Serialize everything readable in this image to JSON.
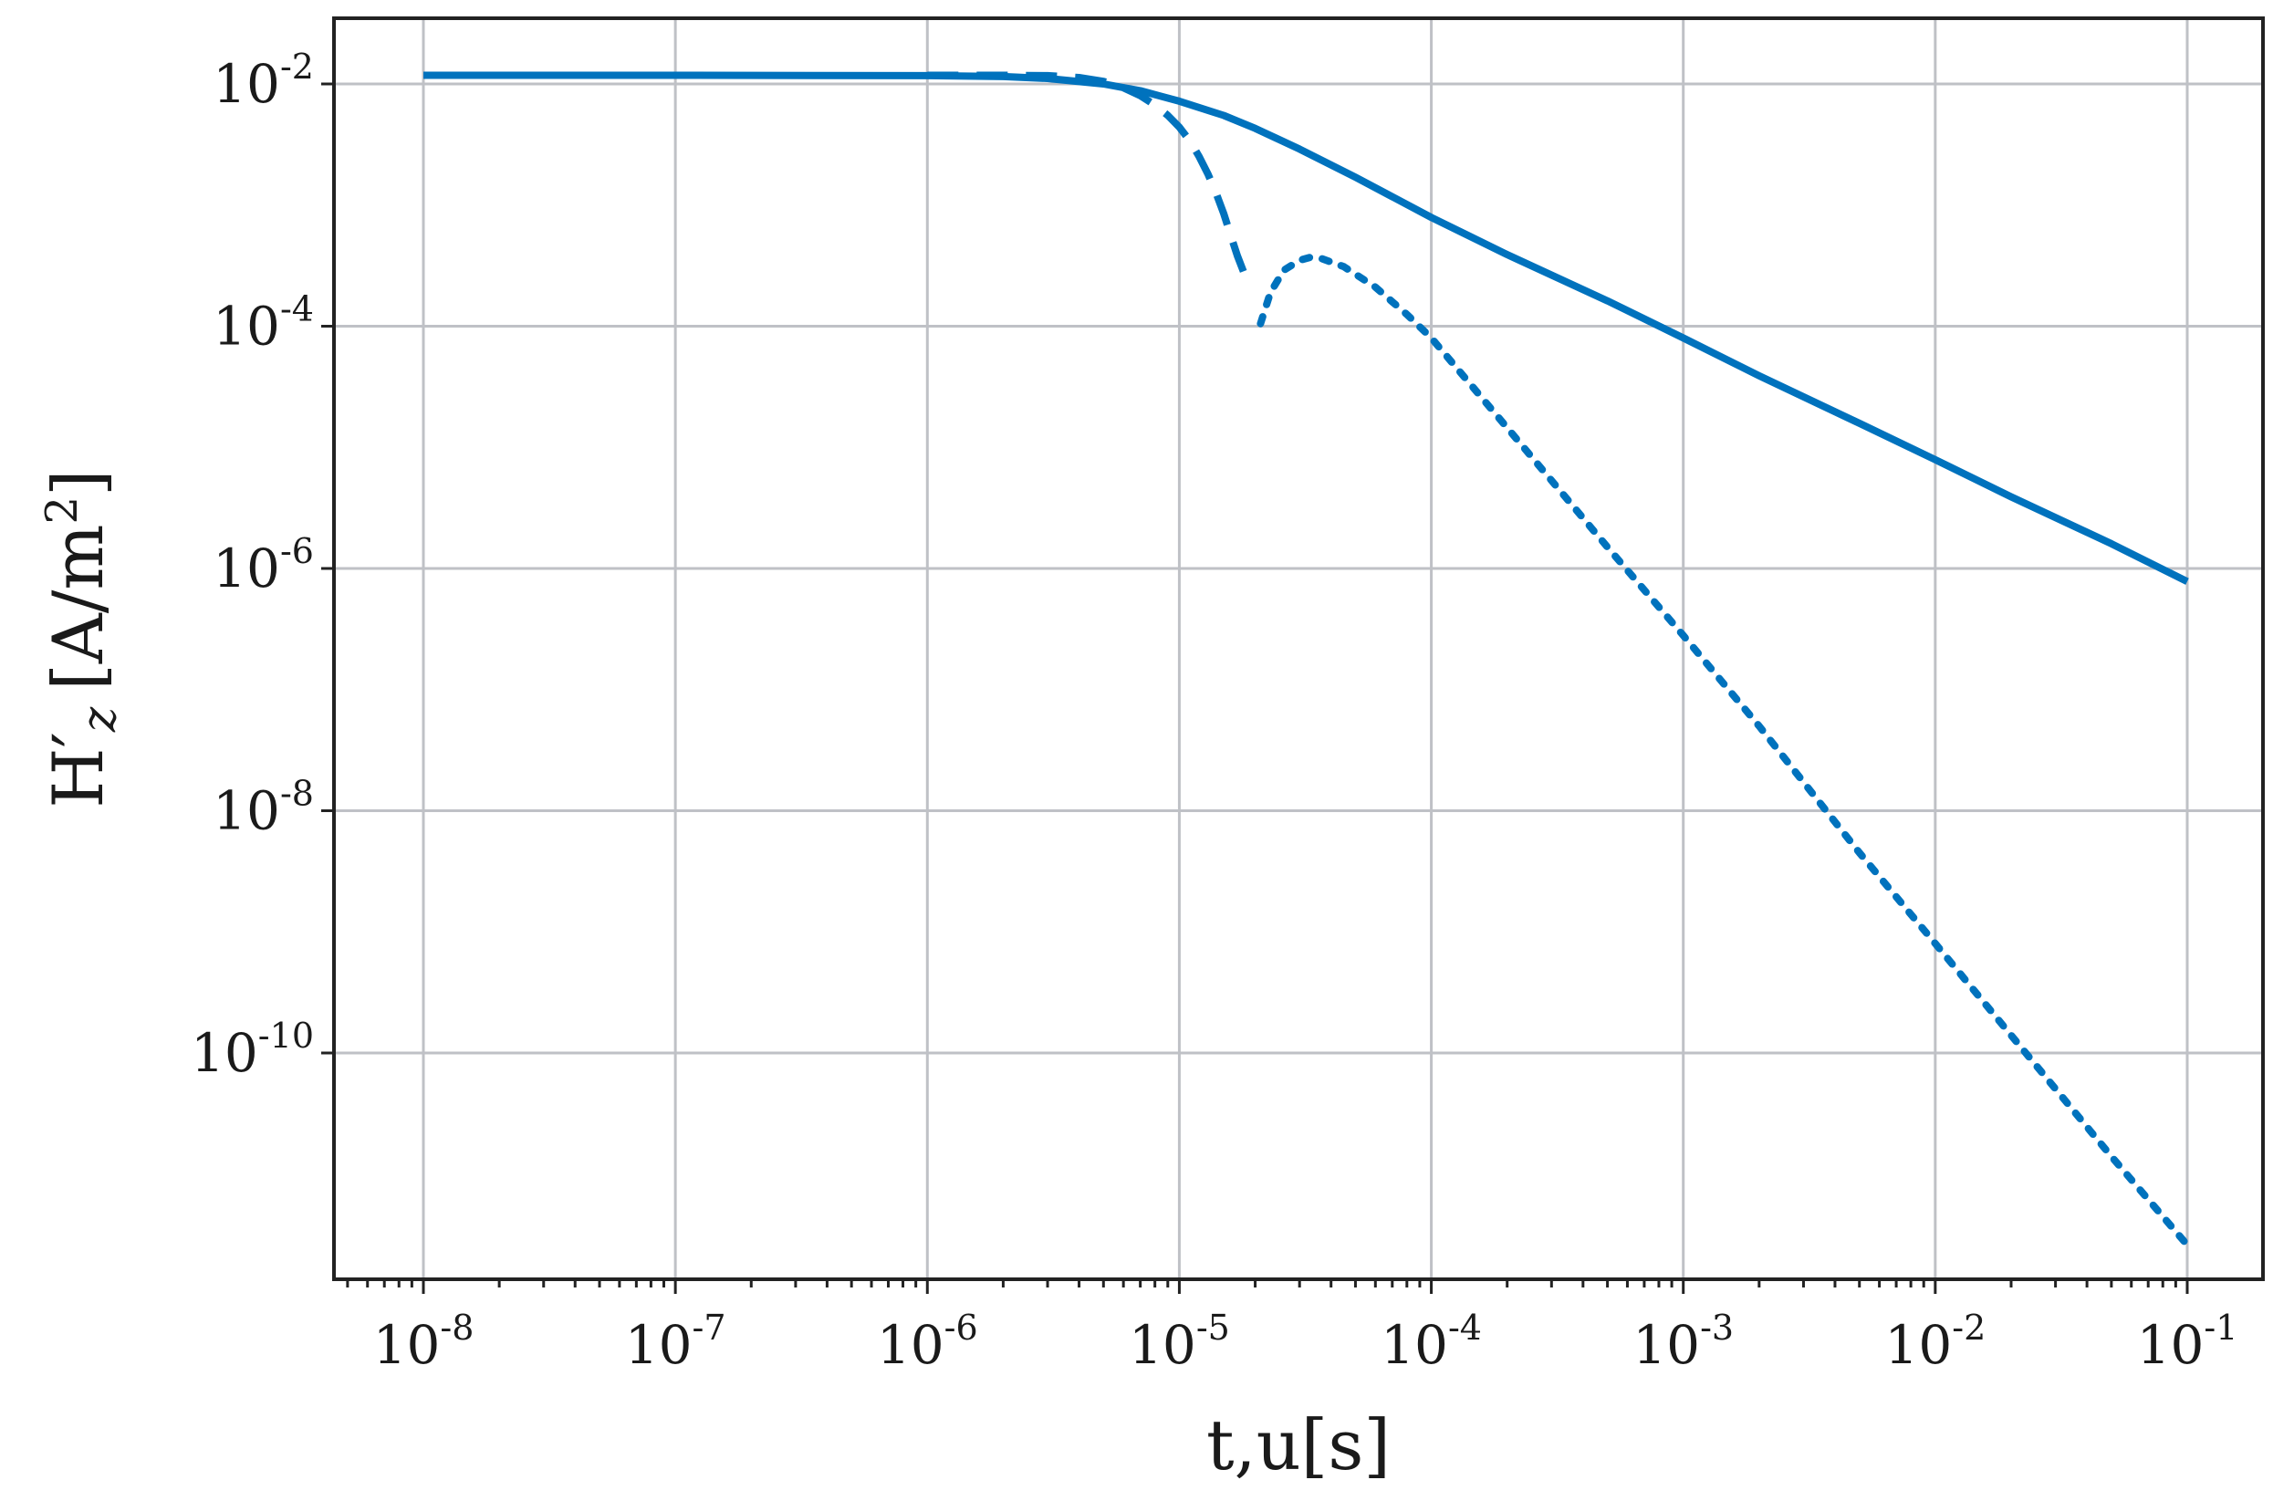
{
  "chart_data": {
    "type": "line",
    "title": "",
    "xscale": "log",
    "yscale": "log",
    "xlim": [
      5e-09,
      0.15
    ],
    "ylim": [
      1.6e-12,
      0.03
    ],
    "grid": true,
    "xlabel": "t,u[s]",
    "ylabel": {
      "main": "H′",
      "subscript": "z",
      "unit_open": "[A/m",
      "unit_power": "2",
      "unit_close": "]"
    },
    "x_ticks": [
      {
        "value": 1e-08,
        "base": "10",
        "exp": "-8"
      },
      {
        "value": 1e-07,
        "base": "10",
        "exp": "-7"
      },
      {
        "value": 1e-06,
        "base": "10",
        "exp": "-6"
      },
      {
        "value": 1e-05,
        "base": "10",
        "exp": "-5"
      },
      {
        "value": 0.0001,
        "base": "10",
        "exp": "-4"
      },
      {
        "value": 0.001,
        "base": "10",
        "exp": "-3"
      },
      {
        "value": 0.01,
        "base": "10",
        "exp": "-2"
      },
      {
        "value": 0.1,
        "base": "10",
        "exp": "-1"
      }
    ],
    "y_ticks": [
      {
        "value": 0.01,
        "base": "10",
        "exp": "-2"
      },
      {
        "value": 0.0001,
        "base": "10",
        "exp": "-4"
      },
      {
        "value": 1e-06,
        "base": "10",
        "exp": "-6"
      },
      {
        "value": 1e-08,
        "base": "10",
        "exp": "-8"
      },
      {
        "value": 1e-10,
        "base": "10",
        "exp": "-10"
      }
    ],
    "series": [
      {
        "style": "solid",
        "color": "#0072bd",
        "x": [
          1e-08,
          1e-07,
          1e-06,
          2e-06,
          3e-06,
          5e-06,
          7e-06,
          1e-05,
          1.5e-05,
          2e-05,
          3e-05,
          5e-05,
          0.0001,
          0.0002,
          0.0005,
          0.001,
          0.002,
          0.005,
          0.01,
          0.02,
          0.05,
          0.1
        ],
        "y": [
          0.0118,
          0.0118,
          0.0117,
          0.0115,
          0.0111,
          0.01,
          0.0088,
          0.0072,
          0.0055,
          0.0043,
          0.0029,
          0.0017,
          0.00079,
          0.00039,
          0.000162,
          8e-05,
          3.9e-05,
          1.58e-05,
          7.9e-06,
          3.9e-06,
          1.6e-06,
          7.8e-07
        ]
      },
      {
        "style": "dashed",
        "color": "#0072bd",
        "x": [
          1e-06,
          2e-06,
          3e-06,
          4e-06,
          5e-06,
          6e-06,
          7e-06,
          8e-06,
          9e-06,
          1e-05,
          1.1e-05,
          1.2e-05,
          1.3e-05,
          1.4e-05,
          1.5e-05,
          1.6e-05,
          1.7e-05,
          1.8e-05
        ],
        "y": [
          0.0118,
          0.0118,
          0.0117,
          0.0113,
          0.0105,
          0.0093,
          0.008,
          0.0067,
          0.0055,
          0.0044,
          0.0034,
          0.0025,
          0.0018,
          0.00125,
          0.00085,
          0.00056,
          0.00038,
          0.00028
        ]
      },
      {
        "style": "dotted",
        "color": "#0072bd",
        "x": [
          2.1e-05,
          2.3e-05,
          2.6e-05,
          3e-05,
          3.3e-05,
          3.7e-05,
          4.5e-05,
          6e-05,
          8e-05,
          0.0001,
          0.0002,
          0.0005,
          0.001,
          0.002,
          0.005,
          0.01,
          0.02,
          0.05,
          0.1
        ],
        "y": [
          0.000105,
          0.00019,
          0.00029,
          0.00035,
          0.00037,
          0.00036,
          0.00031,
          0.00021,
          0.000125,
          8e-05,
          1.45e-05,
          1.5e-06,
          2.8e-07,
          5e-08,
          4.5e-09,
          8e-10,
          1.4e-10,
          1.4e-11,
          2.6e-12
        ]
      }
    ]
  }
}
